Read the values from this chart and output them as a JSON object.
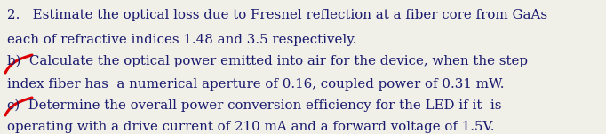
{
  "bg_color": "#f0efe8",
  "text_color": "#1a1a6e",
  "red_color": "#dd0000",
  "font_size": 10.8,
  "line1": "2.   Estimate the optical loss due to Fresnel reflection at a fiber core from GaAs",
  "line2": "each of refractive indices 1.48 and 3.5 respectively.",
  "line3": "b)  Calculate the optical power emitted into air for the device, when the step",
  "line4": "index fiber has  a numerical aperture of 0.16, coupled power of 0.31 mW.",
  "line5": "c)  Determine the overall power conversion efficiency for the LED if it  is",
  "line6": "operating with a drive current of 210 mA and a forward voltage of 1.5V."
}
